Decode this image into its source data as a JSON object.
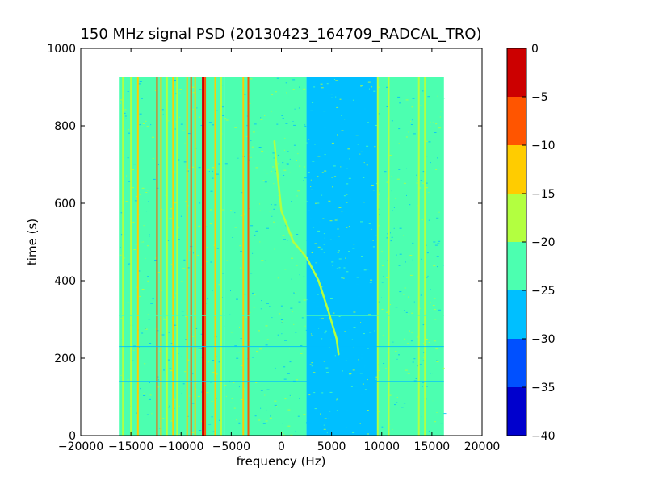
{
  "chart_data": {
    "type": "heatmap",
    "title": "150 MHz signal PSD (20130423_164709_RADCAL_TRO)",
    "xlabel": "frequency (Hz)",
    "ylabel": "time (s)",
    "xlim": [
      -20000,
      20000
    ],
    "ylim": [
      0,
      1000
    ],
    "x_ticks": [
      -20000,
      -15000,
      -10000,
      -5000,
      0,
      5000,
      10000,
      15000,
      20000
    ],
    "x_tick_labels": [
      "−20000",
      "−15000",
      "−10000",
      "−5000",
      "0",
      "5000",
      "10000",
      "15000",
      "20000"
    ],
    "y_ticks": [
      0,
      200,
      400,
      600,
      800,
      1000
    ],
    "y_tick_labels": [
      "0",
      "200",
      "400",
      "600",
      "800",
      "1000"
    ],
    "data_extent": {
      "x": [
        -16200,
        16200
      ],
      "y": [
        0,
        925
      ]
    },
    "background_level": -25,
    "colorbar": {
      "range": [
        -40,
        0
      ],
      "ticks": [
        0,
        -5,
        -10,
        -15,
        -20,
        -25,
        -30,
        -35,
        -40
      ],
      "tick_labels": [
        "0",
        "−5",
        "−10",
        "−15",
        "−20",
        "−25",
        "−30",
        "−35",
        "−40"
      ],
      "levels": [
        {
          "range": [
            -40,
            -35
          ],
          "color": "#0000cd"
        },
        {
          "range": [
            -35,
            -30
          ],
          "color": "#0050ff"
        },
        {
          "range": [
            -30,
            -25
          ],
          "color": "#00bfff"
        },
        {
          "range": [
            -25,
            -20
          ],
          "color": "#4cffb0"
        },
        {
          "range": [
            -20,
            -15
          ],
          "color": "#b3ff40"
        },
        {
          "range": [
            -15,
            -10
          ],
          "color": "#ffcc00"
        },
        {
          "range": [
            -10,
            -5
          ],
          "color": "#ff5500"
        },
        {
          "range": [
            -5,
            0
          ],
          "color": "#cc0000"
        }
      ]
    },
    "bands": [
      {
        "x": [
          -16200,
          -5600
        ],
        "level": -22.5
      },
      {
        "x": [
          -5600,
          2500
        ],
        "level": -24
      },
      {
        "x": [
          2500,
          9600
        ],
        "level": -27.5
      },
      {
        "x": [
          9600,
          13400
        ],
        "level": -24.5
      },
      {
        "x": [
          13400,
          16200
        ],
        "level": -23.5
      }
    ],
    "lines": [
      {
        "x": -15800,
        "level": -17.5
      },
      {
        "x": -15000,
        "level": -17.5
      },
      {
        "x": -14300,
        "level": -12.5
      },
      {
        "x": -12400,
        "level": -7.5
      },
      {
        "x": -12000,
        "level": -12.5
      },
      {
        "x": -11400,
        "level": -17.5
      },
      {
        "x": -10800,
        "level": -12.5
      },
      {
        "x": -10400,
        "level": -17.5
      },
      {
        "x": -9400,
        "level": -12.5
      },
      {
        "x": -9000,
        "level": -7.5
      },
      {
        "x": -8600,
        "level": -12.5
      },
      {
        "x": -7800,
        "level": -2.5
      },
      {
        "x": -7600,
        "level": -7.5
      },
      {
        "x": -6600,
        "level": -12.5
      },
      {
        "x": -6000,
        "level": -17.5
      },
      {
        "x": -3800,
        "level": -12.5
      },
      {
        "x": -3300,
        "level": -7.5
      },
      {
        "x": 9600,
        "level": -17.5
      },
      {
        "x": 9900,
        "level": -22.5
      },
      {
        "x": 10700,
        "level": -17.5
      },
      {
        "x": 13700,
        "level": -17.5
      },
      {
        "x": 14300,
        "level": -17.5
      },
      {
        "x": 15000,
        "level": -22.5
      }
    ],
    "sweep": {
      "level": -17.5,
      "points": [
        {
          "x": -700,
          "y": 760
        },
        {
          "x": -500,
          "y": 700
        },
        {
          "x": 0,
          "y": 580
        },
        {
          "x": 1200,
          "y": 500
        },
        {
          "x": 2500,
          "y": 460
        },
        {
          "x": 3700,
          "y": 400
        },
        {
          "x": 4700,
          "y": 320
        },
        {
          "x": 5500,
          "y": 250
        },
        {
          "x": 5700,
          "y": 210
        }
      ]
    },
    "horizontal_lines": [
      {
        "y": 310,
        "x": [
          -16200,
          16200
        ],
        "level": -22.5
      },
      {
        "y": 230,
        "x": [
          -16200,
          16200
        ],
        "level": -27.5
      },
      {
        "y": 140,
        "x": [
          -16200,
          16200
        ],
        "level": -27.5
      }
    ]
  }
}
